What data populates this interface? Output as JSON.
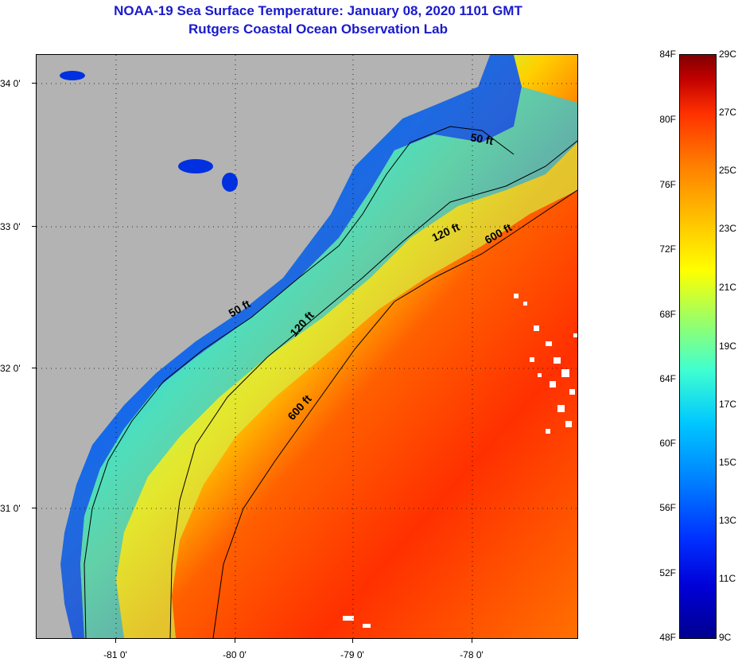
{
  "header": {
    "title": "NOAA-19 Sea Surface Temperature:  January 08, 2020 1101 GMT",
    "subtitle": "Rutgers Coastal Ocean Observation Lab"
  },
  "axes": {
    "lat_labels": [
      "34 0'",
      "33 0'",
      "32 0'",
      "31 0'"
    ],
    "lon_labels": [
      "-81 0'",
      "-80 0'",
      "-79 0'",
      "-78 0'"
    ]
  },
  "contours": {
    "labels": [
      "50 ft",
      "50 ft",
      "120 ft",
      "120 ft",
      "600 ft",
      "600 ft"
    ]
  },
  "colorbar": {
    "fahrenheit": [
      "84F",
      "80F",
      "76F",
      "72F",
      "68F",
      "64F",
      "60F",
      "56F",
      "52F",
      "48F"
    ],
    "celsius": [
      "29C",
      "27C",
      "25C",
      "23C",
      "21C",
      "19C",
      "17C",
      "15C",
      "13C",
      "11C",
      "9C"
    ]
  },
  "colors": {
    "land": "#b3b3b3",
    "title": "#1a1acd",
    "cold": "#0000d8",
    "warm": "#ff4000"
  }
}
